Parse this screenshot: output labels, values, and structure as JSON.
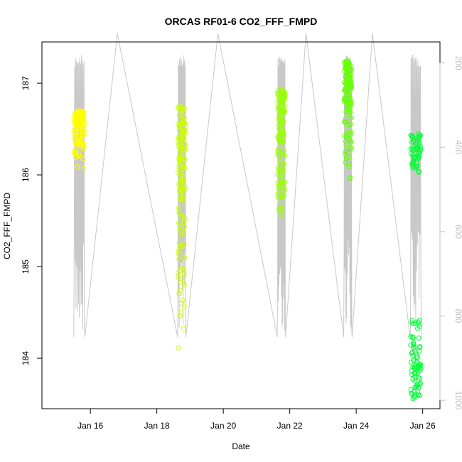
{
  "chart_data": {
    "type": "scatter",
    "title": "ORCAS RF01-6 CO2_FFF_FMPD",
    "xlabel": "Date",
    "ylabel": "CO2_FFF_FMPD",
    "xlim": [
      "2016-01-14T13:00",
      "2016-01-26T12:30"
    ],
    "ylim": [
      183.45,
      187.45
    ],
    "x_ticks": [
      {
        "value": "2016-01-16T00:00",
        "label": "Jan 16"
      },
      {
        "value": "2016-01-18T00:00",
        "label": "Jan 18"
      },
      {
        "value": "2016-01-20T00:00",
        "label": "Jan 20"
      },
      {
        "value": "2016-01-22T00:00",
        "label": "Jan 22"
      },
      {
        "value": "2016-01-24T00:00",
        "label": "Jan 24"
      },
      {
        "value": "2016-01-26T00:00",
        "label": "Jan 26"
      }
    ],
    "y_ticks": [
      184,
      185,
      186,
      187
    ],
    "secondary_y": {
      "description": "pressure (inverted), gray line",
      "ticks": [
        200,
        400,
        600,
        800,
        1000
      ],
      "lim": [
        1020,
        150
      ],
      "color": "#bfbfbf"
    },
    "grid": false,
    "legend": "none",
    "marker_colors_by_flight": [
      "#ffff00",
      "#ccff00",
      "#99ff00",
      "#66ff00",
      "#00ff33"
    ],
    "flights": [
      {
        "start": "2016-01-15T12:00",
        "end": "2016-01-15T20:00",
        "ymin": 186.05,
        "ymax": 186.7,
        "color": "#ffff00"
      },
      {
        "start": "2016-01-18T15:00",
        "end": "2016-01-18T21:00",
        "ymin": 184.0,
        "ymax": 186.75,
        "color": "#ccff00"
      },
      {
        "start": "2016-01-21T15:00",
        "end": "2016-01-21T21:00",
        "ymin": 185.5,
        "ymax": 186.95,
        "color": "#99ff00"
      },
      {
        "start": "2016-01-23T15:00",
        "end": "2016-01-23T21:00",
        "ymin": 185.95,
        "ymax": 187.25,
        "color": "#66ff00"
      },
      {
        "start": "2016-01-25T15:00",
        "end": "2016-01-25T23:00",
        "ymin": 183.55,
        "ymax": 186.45,
        "color": "#00ff33"
      }
    ]
  }
}
